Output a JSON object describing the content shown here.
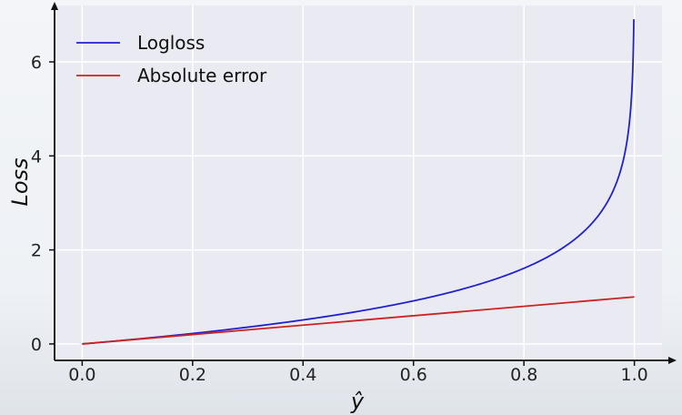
{
  "chart_data": {
    "type": "line",
    "xlabel": "ŷ",
    "ylabel": "Loss",
    "xlim": [
      -0.05,
      1.05
    ],
    "ylim": [
      -0.35,
      7.2
    ],
    "x_ticks": [
      "0.0",
      "0.2",
      "0.4",
      "0.6",
      "0.8",
      "1.0"
    ],
    "y_ticks": [
      "0",
      "2",
      "4",
      "6"
    ],
    "grid": true,
    "legend_position": "top-left",
    "series": [
      {
        "name": "Logloss",
        "color": "#2222cc",
        "x": [
          0.0,
          0.1,
          0.2,
          0.3,
          0.4,
          0.5,
          0.6,
          0.7,
          0.8,
          0.85,
          0.9,
          0.93,
          0.95,
          0.97,
          0.98,
          0.99,
          0.995,
          0.999
        ],
        "y": [
          0.0,
          0.105,
          0.223,
          0.357,
          0.511,
          0.693,
          0.916,
          1.204,
          1.609,
          1.897,
          2.303,
          2.659,
          2.996,
          3.507,
          3.912,
          4.605,
          5.298,
          6.908
        ]
      },
      {
        "name": "Absolute error",
        "color": "#cc2222",
        "x": [
          0.0,
          1.0
        ],
        "y": [
          0.0,
          1.0
        ]
      }
    ]
  }
}
